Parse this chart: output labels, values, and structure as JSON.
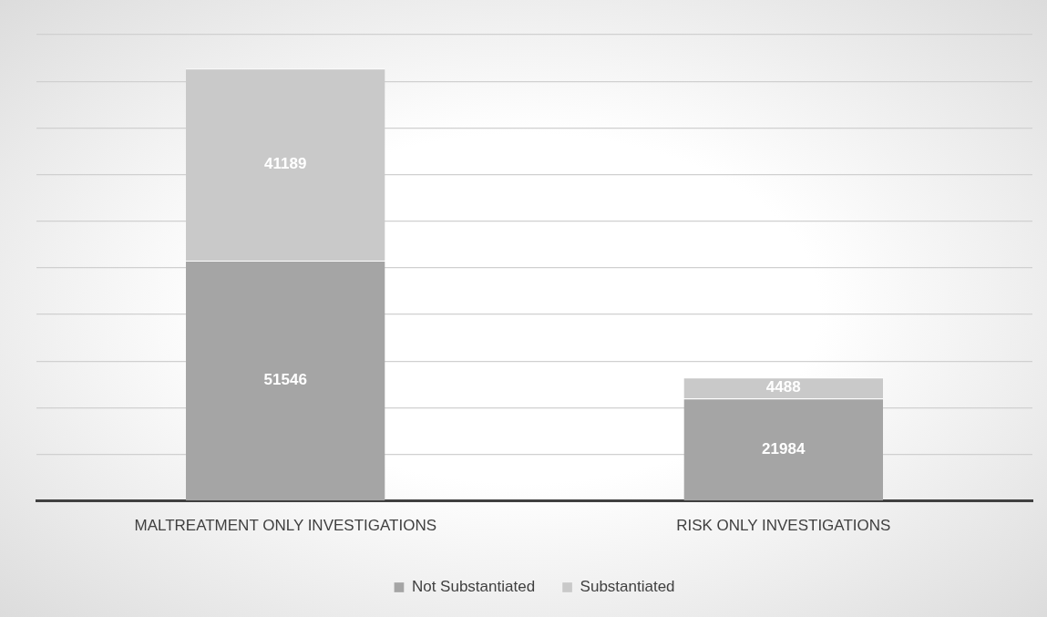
{
  "chart_data": {
    "type": "bar",
    "stacked": true,
    "categories": [
      "MALTREATMENT ONLY INVESTIGATIONS",
      "RISK ONLY INVESTIGATIONS"
    ],
    "series": [
      {
        "name": "Not Substantiated",
        "color": "#a5a5a5",
        "values": [
          51546,
          21984
        ]
      },
      {
        "name": "Substantiated",
        "color": "#c9c9c9",
        "values": [
          41189,
          4488
        ]
      }
    ],
    "ylim": [
      0,
      100000
    ],
    "yticks": [
      {
        "value": 0,
        "label": null
      },
      {
        "value": 10000,
        "label": null
      },
      {
        "value": 20000,
        "label": null
      },
      {
        "value": 30000,
        "label": null
      },
      {
        "value": 40000,
        "label": null
      },
      {
        "value": 50000,
        "label": null
      },
      {
        "value": 60000,
        "label": null
      },
      {
        "value": 70000,
        "label": null
      },
      {
        "value": 80000,
        "label": null
      },
      {
        "value": 90000,
        "label": null
      }
    ],
    "tick_labels": "x",
    "grid": "y",
    "legend": "bottom",
    "data_labels": true
  }
}
